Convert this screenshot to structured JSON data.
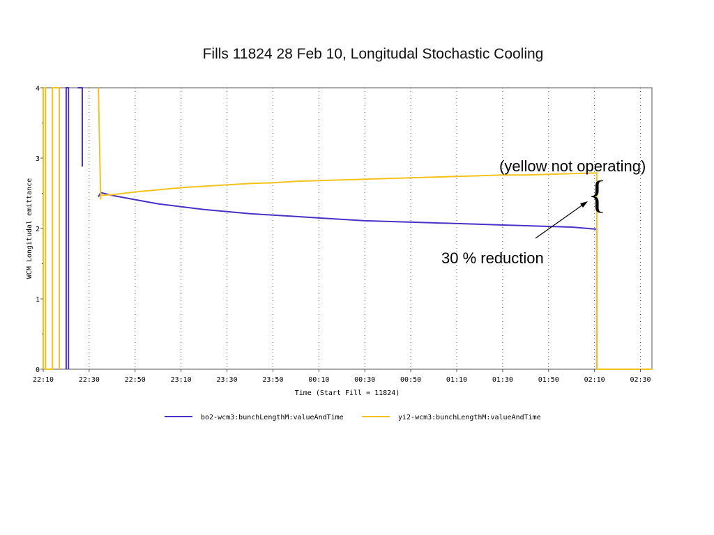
{
  "slide": {
    "title": "Fills 11824 28 Feb 10, Longitudal Stochastic Cooling"
  },
  "annotations": {
    "yellow_note": "(yellow not operating)",
    "reduction_note": "30 % reduction",
    "brace_glyph": "{"
  },
  "chart_data": {
    "type": "line",
    "title": "Fills 11824 28 Feb 10, Longitudal Stochastic Cooling",
    "xlabel": "Time (Start Fill = 11824)",
    "ylabel": "WCM Longitudal emittance",
    "x_unit": "minutes after 22:10",
    "xlim": [
      0,
      265
    ],
    "ylim": [
      0,
      4
    ],
    "x_ticks": [
      "22:10",
      "22:30",
      "22:50",
      "23:10",
      "23:30",
      "23:50",
      "00:10",
      "00:30",
      "00:50",
      "01:10",
      "01:30",
      "01:50",
      "02:10",
      "02:30"
    ],
    "y_ticks": [
      "0",
      "1",
      "2",
      "3",
      "4"
    ],
    "grid": "vertical dotted",
    "legend_position": "bottom",
    "series": [
      {
        "name": "bo2-wcm3:bunchLengthM:valueAndTime",
        "color": "#4a2fc8",
        "x": [
          0,
          10,
          10,
          11,
          11,
          15,
          15,
          17,
          17,
          17,
          24,
          25,
          30,
          40,
          50,
          60,
          70,
          80,
          90,
          100,
          110,
          120,
          130,
          140,
          150,
          160,
          170,
          180,
          190,
          200,
          210,
          220,
          230,
          241,
          241
        ],
        "y": [
          null,
          0,
          4,
          4,
          0,
          null,
          4,
          4,
          2.88,
          null,
          2.45,
          2.51,
          2.47,
          2.41,
          2.35,
          2.31,
          2.27,
          2.24,
          2.21,
          2.19,
          2.17,
          2.15,
          2.13,
          2.11,
          2.1,
          2.09,
          2.08,
          2.07,
          2.06,
          2.05,
          2.04,
          2.03,
          2.02,
          1.99,
          0
        ]
      },
      {
        "name": "yi2-wcm3:bunchLengthM:valueAndTime",
        "color": "#f5c21b",
        "x": [
          0,
          0,
          1,
          1,
          4,
          4,
          7,
          7,
          24,
          24,
          25,
          25,
          30,
          40,
          50,
          60,
          70,
          80,
          90,
          100,
          110,
          120,
          130,
          140,
          150,
          160,
          170,
          180,
          190,
          200,
          210,
          220,
          230,
          241,
          241,
          265
        ],
        "y": [
          0,
          4,
          4,
          0,
          0,
          4,
          4,
          0,
          null,
          4,
          2.42,
          2.47,
          2.48,
          2.52,
          2.55,
          2.58,
          2.6,
          2.62,
          2.64,
          2.65,
          2.67,
          2.68,
          2.69,
          2.7,
          2.71,
          2.72,
          2.73,
          2.74,
          2.75,
          2.76,
          2.76,
          2.77,
          2.78,
          2.79,
          0,
          0
        ]
      }
    ]
  }
}
